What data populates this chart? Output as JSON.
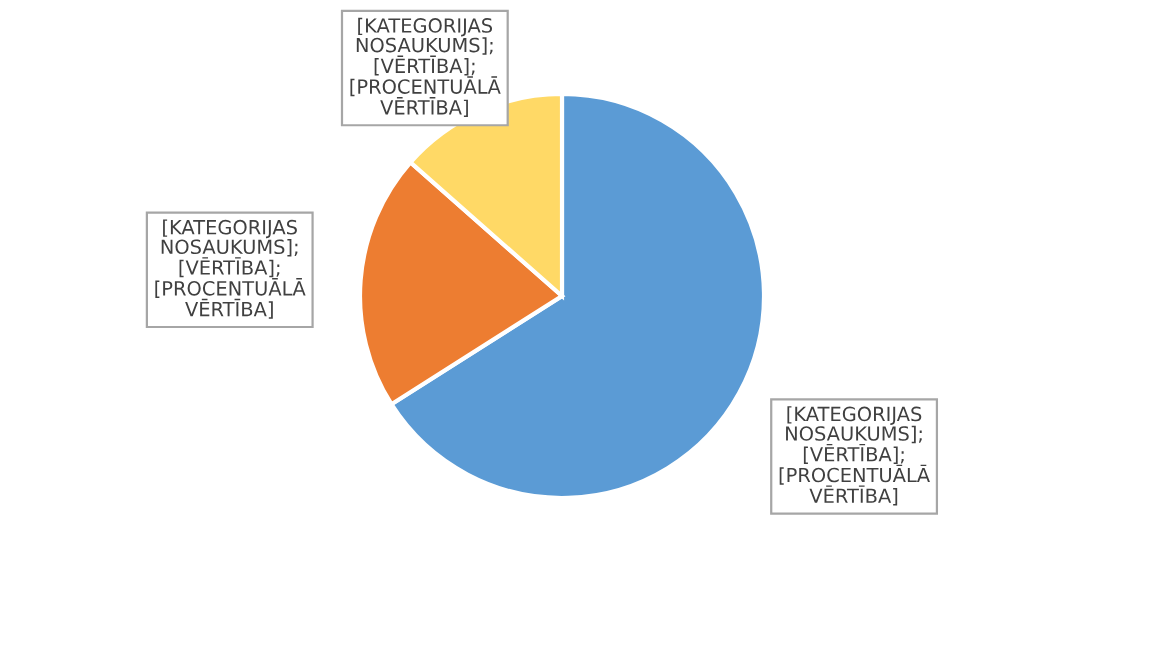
{
  "chart_data": {
    "type": "pie",
    "categories": [
      null,
      null,
      null
    ],
    "values": [
      66,
      20.5,
      13.5
    ],
    "colors": [
      "#5b9bd5",
      "#ed7d31",
      "#ffd966"
    ],
    "value_labels": [
      "[KATEGORIJAS\nNOSAUKUMS];\n[VĒRTĪBA];\n[PROCENTUĀLĀ\nVĒRTĪBA]",
      "[KATEGORIJAS\nNOSAUKUMS];\n[VĒRTĪBA];\n[PROCENTUĀLĀ\nVĒRTĪBA]",
      "[KATEGORIJAS\nNOSAUKUMS];\n[VĒRTĪBA];\n[PROCENTUĀLĀ\nVĒRTĪBA]"
    ]
  }
}
